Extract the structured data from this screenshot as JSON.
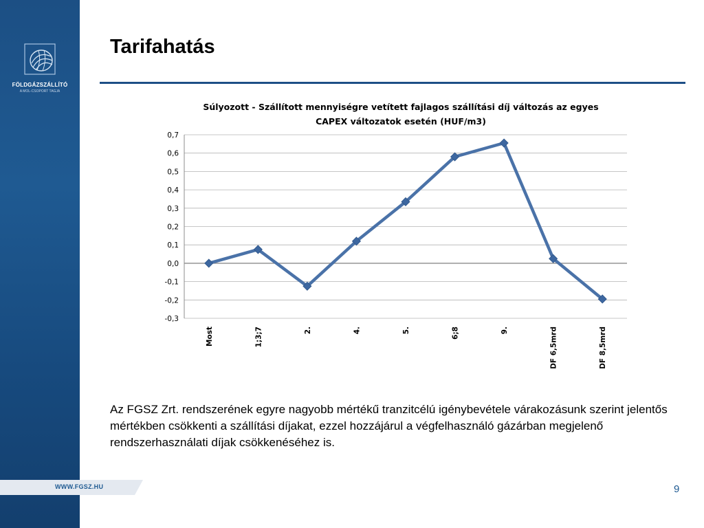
{
  "slide": {
    "title": "Tarifahatás",
    "logo_name": "FÖLDGÁZSZÁLLÍTÓ",
    "logo_tagline": "A MOL-CSOPORT TAGJA",
    "website": "WWW.FGSZ.HU",
    "page_number": "9",
    "body_text": "Az FGSZ Zrt. rendszerének egyre nagyobb mértékű tranzitcélú igénybevétele várakozásunk szerint jelentős mértékben csökkenti a szállítási díjakat, ezzel hozzájárul a végfelhasználó gázárban megjelenő rendszerhasználati díjak csökkenéséhez is.",
    "colors": {
      "sidebar": "#1c4f84",
      "accent": "#1d4f86",
      "series": "#4a72a8"
    }
  },
  "chart_data": {
    "type": "line",
    "title_line1": "Súlyozott - Szállított mennyiségre vetített fajlagos szállítási díj változás az egyes",
    "title_line2": "CAPEX változatok esetén (HUF/m3)",
    "categories": [
      "Most",
      "1;3;7",
      "2.",
      "4.",
      "5.",
      "6;8",
      "9.",
      "DF 6,5mrd",
      "DF 8,5mrd"
    ],
    "values": [
      0.0,
      0.075,
      -0.125,
      0.12,
      0.335,
      0.58,
      0.655,
      0.025,
      -0.195
    ],
    "ylim": [
      -0.3,
      0.7
    ],
    "yticks": [
      "0,7",
      "0,6",
      "0,5",
      "0,4",
      "0,3",
      "0,2",
      "0,1",
      "0,0",
      "-0,1",
      "-0,2",
      "-0,3"
    ],
    "grid": true,
    "legend": "none"
  }
}
